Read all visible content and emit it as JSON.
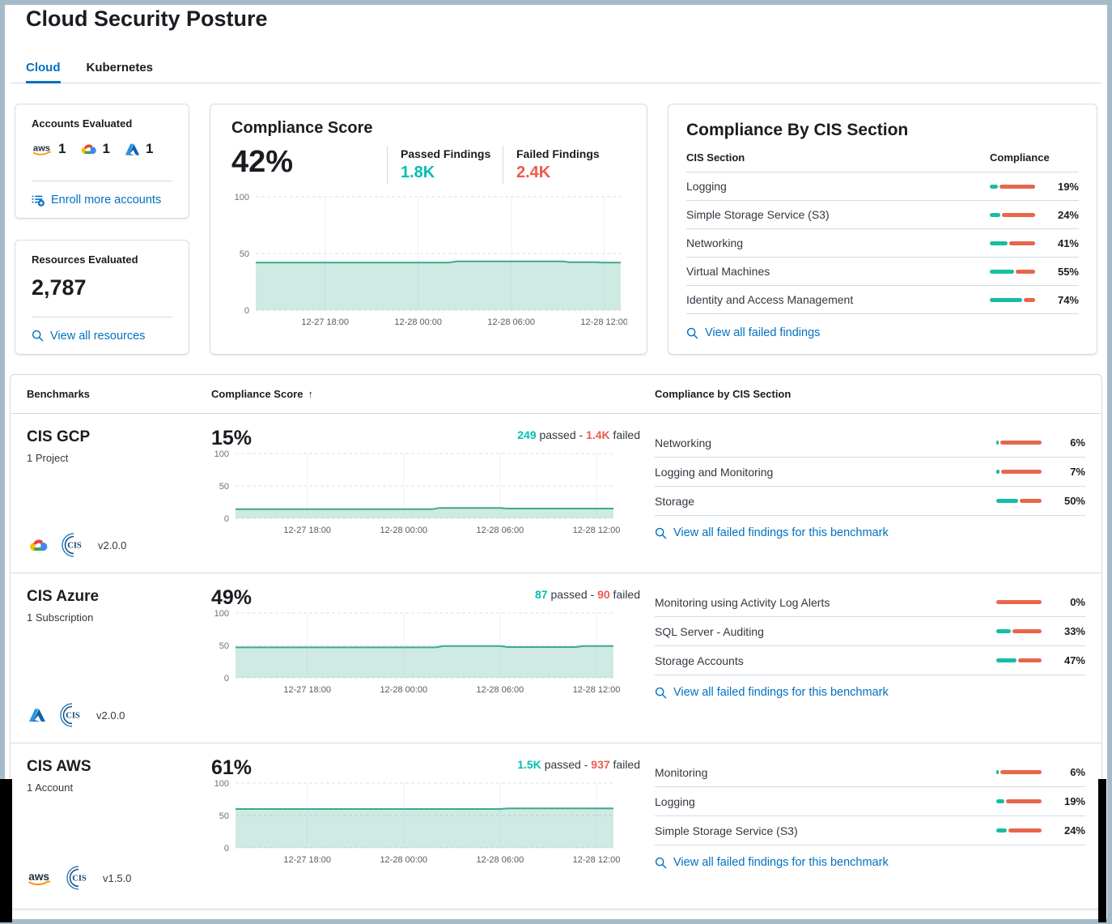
{
  "page": {
    "title": "Cloud Security Posture"
  },
  "tabs": [
    {
      "label": "Cloud",
      "active": true
    },
    {
      "label": "Kubernetes",
      "active": false
    }
  ],
  "colors": {
    "accent": "#0071c2",
    "pass_text": "#00bfb3",
    "fail_text": "#ee5a4e",
    "bar_pass": "#17bda5",
    "bar_fail": "#e7664c",
    "chart_line": "#3fa98c",
    "chart_fill": "rgba(84,179,153,0.28)"
  },
  "accounts_card": {
    "title": "Accounts Evaluated",
    "providers": [
      {
        "name": "AWS",
        "count": "1"
      },
      {
        "name": "GCP",
        "count": "1"
      },
      {
        "name": "Azure",
        "count": "1"
      }
    ],
    "link": "Enroll more accounts"
  },
  "resources_card": {
    "title": "Resources Evaluated",
    "count": "2,787",
    "link": "View all resources"
  },
  "score_card": {
    "title": "Compliance Score",
    "score": "42%",
    "passed_label": "Passed Findings",
    "passed_value": "1.8K",
    "failed_label": "Failed Findings",
    "failed_value": "2.4K"
  },
  "cis_card": {
    "title": "Compliance By CIS Section",
    "columns": {
      "section": "CIS Section",
      "compliance": "Compliance"
    },
    "rows": [
      {
        "label": "Logging",
        "pct": 19,
        "pct_label": "19%"
      },
      {
        "label": "Simple Storage Service (S3)",
        "pct": 24,
        "pct_label": "24%"
      },
      {
        "label": "Networking",
        "pct": 41,
        "pct_label": "41%"
      },
      {
        "label": "Virtual Machines",
        "pct": 55,
        "pct_label": "55%"
      },
      {
        "label": "Identity and Access Management",
        "pct": 74,
        "pct_label": "74%"
      }
    ],
    "link": "View all failed findings"
  },
  "benchmarks": {
    "columns": {
      "benchmarks": "Benchmarks",
      "score": "Compliance Score",
      "sort_indicator": "↑",
      "sections": "Compliance by CIS Section"
    },
    "rows": [
      {
        "name": "CIS GCP",
        "scope": "1 Project",
        "provider": "GCP",
        "version": "v2.0.0",
        "score": "15%",
        "passed": "249",
        "passed_word": "passed -",
        "failed": "1.4K",
        "failed_word": "failed",
        "sections": [
          {
            "label": "Networking",
            "pct": 6,
            "pct_label": "6%"
          },
          {
            "label": "Logging and Monitoring",
            "pct": 7,
            "pct_label": "7%"
          },
          {
            "label": "Storage",
            "pct": 50,
            "pct_label": "50%"
          }
        ],
        "link": "View all failed findings for this benchmark"
      },
      {
        "name": "CIS Azure",
        "scope": "1 Subscription",
        "provider": "Azure",
        "version": "v2.0.0",
        "score": "49%",
        "passed": "87",
        "passed_word": "passed -",
        "failed": "90",
        "failed_word": "failed",
        "sections": [
          {
            "label": "Monitoring using Activity Log Alerts",
            "pct": 0,
            "pct_label": "0%"
          },
          {
            "label": "SQL Server - Auditing",
            "pct": 33,
            "pct_label": "33%"
          },
          {
            "label": "Storage Accounts",
            "pct": 47,
            "pct_label": "47%"
          }
        ],
        "link": "View all failed findings for this benchmark"
      },
      {
        "name": "CIS AWS",
        "scope": "1 Account",
        "provider": "AWS",
        "version": "v1.5.0",
        "score": "61%",
        "passed": "1.5K",
        "passed_word": "passed -",
        "failed": "937",
        "failed_word": "failed",
        "sections": [
          {
            "label": "Monitoring",
            "pct": 6,
            "pct_label": "6%"
          },
          {
            "label": "Logging",
            "pct": 19,
            "pct_label": "19%"
          },
          {
            "label": "Simple Storage Service (S3)",
            "pct": 24,
            "pct_label": "24%"
          }
        ],
        "link": "View all failed findings for this benchmark"
      }
    ]
  },
  "chart_data": [
    {
      "id": "compliance_score_trend",
      "type": "area",
      "title": "Compliance Score trend",
      "ylim": [
        0,
        100
      ],
      "y_ticks": [
        0,
        50,
        100
      ],
      "grid": true,
      "legend": "none",
      "x_ticks": [
        {
          "f": 0.19,
          "label": "12-27 18:00"
        },
        {
          "f": 0.445,
          "label": "12-28 00:00"
        },
        {
          "f": 0.7,
          "label": "12-28 06:00"
        },
        {
          "f": 0.955,
          "label": "12-28 12:00"
        }
      ],
      "points": [
        [
          0,
          42
        ],
        [
          0.53,
          42
        ],
        [
          0.55,
          43
        ],
        [
          0.84,
          43
        ],
        [
          0.86,
          42.3
        ],
        [
          0.93,
          42.3
        ],
        [
          0.95,
          42
        ],
        [
          1,
          42
        ]
      ]
    },
    {
      "id": "cis_gcp_trend",
      "type": "area",
      "title": "CIS GCP compliance trend",
      "ylim": [
        0,
        100
      ],
      "y_ticks": [
        0,
        50,
        100
      ],
      "grid": true,
      "legend": "none",
      "x_ticks": [
        {
          "f": 0.19,
          "label": "12-27 18:00"
        },
        {
          "f": 0.445,
          "label": "12-28 00:00"
        },
        {
          "f": 0.7,
          "label": "12-28 06:00"
        },
        {
          "f": 0.955,
          "label": "12-28 12:00"
        }
      ],
      "points": [
        [
          0,
          14
        ],
        [
          0.52,
          14
        ],
        [
          0.54,
          16
        ],
        [
          0.7,
          16
        ],
        [
          0.72,
          15
        ],
        [
          1,
          15
        ]
      ]
    },
    {
      "id": "cis_azure_trend",
      "type": "area",
      "title": "CIS Azure compliance trend",
      "ylim": [
        0,
        100
      ],
      "y_ticks": [
        0,
        50,
        100
      ],
      "grid": true,
      "legend": "none",
      "x_ticks": [
        {
          "f": 0.19,
          "label": "12-27 18:00"
        },
        {
          "f": 0.445,
          "label": "12-28 00:00"
        },
        {
          "f": 0.7,
          "label": "12-28 06:00"
        },
        {
          "f": 0.955,
          "label": "12-28 12:00"
        }
      ],
      "points": [
        [
          0,
          47
        ],
        [
          0.53,
          47
        ],
        [
          0.55,
          49
        ],
        [
          0.7,
          49
        ],
        [
          0.72,
          47.5
        ],
        [
          0.9,
          47.5
        ],
        [
          0.92,
          49
        ],
        [
          1,
          49
        ]
      ]
    },
    {
      "id": "cis_aws_trend",
      "type": "area",
      "title": "CIS AWS compliance trend",
      "ylim": [
        0,
        100
      ],
      "y_ticks": [
        0,
        50,
        100
      ],
      "grid": true,
      "legend": "none",
      "x_ticks": [
        {
          "f": 0.19,
          "label": "12-27 18:00"
        },
        {
          "f": 0.445,
          "label": "12-28 00:00"
        },
        {
          "f": 0.7,
          "label": "12-28 06:00"
        },
        {
          "f": 0.955,
          "label": "12-28 12:00"
        }
      ],
      "points": [
        [
          0,
          60
        ],
        [
          0.7,
          60
        ],
        [
          0.72,
          61
        ],
        [
          1,
          61
        ]
      ]
    }
  ]
}
